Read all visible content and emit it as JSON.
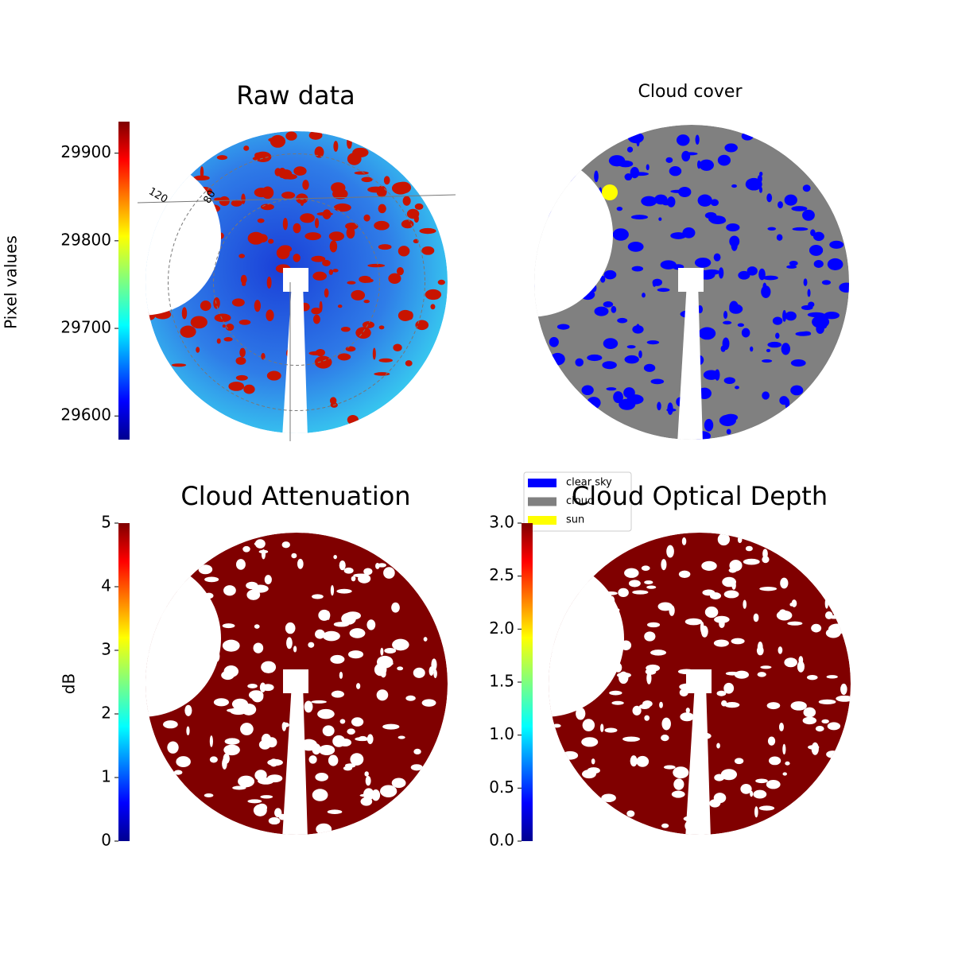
{
  "chart_data": [
    {
      "type": "image",
      "title": "Raw data",
      "colorbar_label": "Pixel values",
      "clim": [
        29573,
        29936
      ],
      "cticks": [
        29600,
        29700,
        29800,
        29900
      ],
      "annotations": [
        "120",
        "80"
      ]
    },
    {
      "type": "image",
      "title": "Cloud cover",
      "legend_entries": [
        {
          "name": "clear sky",
          "color": "#0000ff"
        },
        {
          "name": "cloud",
          "color": "#808080"
        },
        {
          "name": "sun",
          "color": "#ffff00"
        }
      ]
    },
    {
      "type": "image",
      "title": "Cloud Attenuation",
      "colorbar_label": "dB",
      "clim": [
        0,
        5
      ],
      "cticks": [
        0,
        1,
        2,
        3,
        4,
        5
      ]
    },
    {
      "type": "image",
      "title": "Cloud Optical Depth",
      "clim": [
        0,
        3
      ],
      "cticks": [
        {
          "value": 0,
          "label": "0.0"
        },
        0.5,
        {
          "value": 1,
          "label": "1.0"
        },
        1.5,
        {
          "value": 2,
          "label": "2.0"
        },
        2.5,
        {
          "value": 3,
          "label": "3.0"
        }
      ]
    }
  ]
}
